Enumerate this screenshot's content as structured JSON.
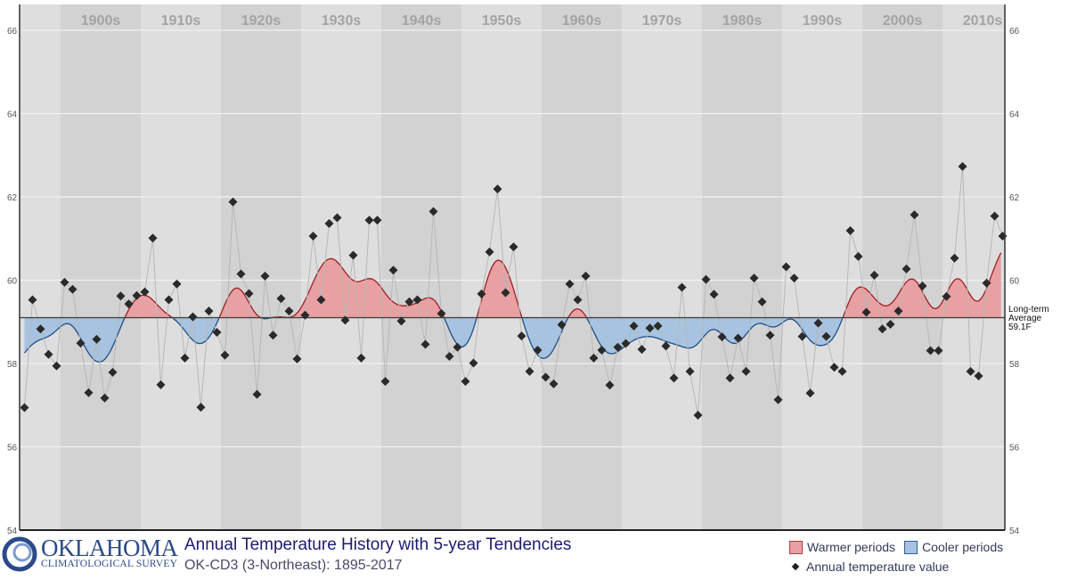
{
  "header": {
    "logo_main": "OKLAHOMA",
    "logo_sub": "CLIMATOLOGICAL SURVEY",
    "title": "Annual Temperature History with 5-year Tendencies",
    "subtitle": "OK-CD3 (3-Northeast): 1895-2017"
  },
  "legend": {
    "warmer": "Warmer periods",
    "cooler": "Cooler periods",
    "annual": "Annual temperature value"
  },
  "chart_data": {
    "type": "line",
    "title": "Annual Temperature History with 5-year Tendencies",
    "subtitle": "OK-CD3 (3-Northeast): 1895-2017",
    "ylim": [
      54,
      66
    ],
    "yticks": [
      54,
      56,
      58,
      60,
      62,
      64,
      66
    ],
    "xlim": [
      1895,
      2017
    ],
    "decades": [
      "1900s",
      "1910s",
      "1920s",
      "1930s",
      "1940s",
      "1950s",
      "1960s",
      "1970s",
      "1980s",
      "1990s",
      "2000s",
      "2010s"
    ],
    "grid": true,
    "average": {
      "value": 59.1,
      "label_lines": [
        "Long-term",
        "Average",
        "59.1F"
      ]
    },
    "colors": {
      "warm": "#e9a0a2",
      "warm_line": "#9c1f25",
      "cool": "#a7c3e0",
      "cool_line": "#1f4f8a",
      "point": "#2a2a2a",
      "band_dark": "#d2d2d2",
      "band_light": "#dedede"
    },
    "series": [
      {
        "name": "Annual temperature value",
        "start_year": 1895,
        "values": [
          56.94,
          59.53,
          58.83,
          58.22,
          57.94,
          59.95,
          59.78,
          58.49,
          57.3,
          58.58,
          57.17,
          57.79,
          59.62,
          59.43,
          59.63,
          59.72,
          61.01,
          57.49,
          59.53,
          59.91,
          58.13,
          59.12,
          56.95,
          59.26,
          58.75,
          58.2,
          61.88,
          60.15,
          59.68,
          57.26,
          60.1,
          58.68,
          59.56,
          59.26,
          58.11,
          59.16,
          61.06,
          59.53,
          61.36,
          61.5,
          59.04,
          60.6,
          58.13,
          61.44,
          61.44,
          57.57,
          60.24,
          59.02,
          59.48,
          59.53,
          58.46,
          61.65,
          59.2,
          58.17,
          58.39,
          57.57,
          58.01,
          59.67,
          60.68,
          62.19,
          59.7,
          60.8,
          58.66,
          57.81,
          58.32,
          57.67,
          57.51,
          58.93,
          59.91,
          59.53,
          60.1,
          58.13,
          58.32,
          57.48,
          58.39,
          58.48,
          58.9,
          58.34,
          58.85,
          58.9,
          58.42,
          57.65,
          59.83,
          57.81,
          56.76,
          60.02,
          59.66,
          58.64,
          57.65,
          58.61,
          57.81,
          60.05,
          59.48,
          58.68,
          57.13,
          60.32,
          60.05,
          58.65,
          57.29,
          58.97,
          58.65,
          57.91,
          57.81,
          61.19,
          60.57,
          59.23,
          60.12,
          58.83,
          58.94,
          59.26,
          60.27,
          61.57,
          59.86,
          58.31,
          58.31,
          59.61,
          60.53,
          62.73,
          57.81,
          57.7,
          59.93,
          61.54,
          61.06
        ]
      }
    ]
  }
}
